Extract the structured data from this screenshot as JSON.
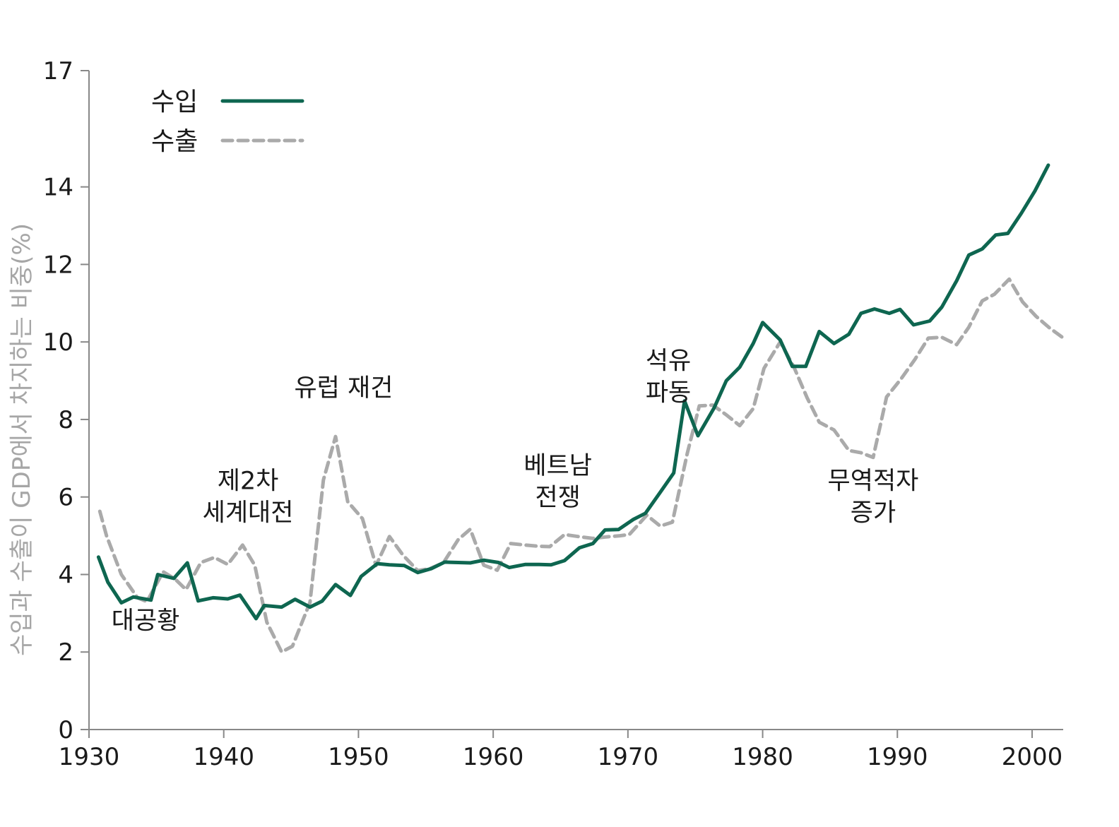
{
  "chart_data": {
    "type": "line",
    "title": "",
    "xlabel": "",
    "ylabel": "수입과 수출이 GDP에서 차지하는 비중(%)",
    "xlim": [
      1930,
      2002
    ],
    "ylim": [
      0,
      17
    ],
    "x_ticks": [
      "1930",
      "1940",
      "1950",
      "1960",
      "1970",
      "1980",
      "1990",
      "2000"
    ],
    "y_ticks": [
      "0",
      "2",
      "4",
      "6",
      "8",
      "10",
      "12",
      "14",
      "17"
    ],
    "grid": false,
    "legend_position": "top-left",
    "colors": {
      "imports": "#0e6650",
      "exports": "#aaaaaa",
      "axis": "#888888"
    },
    "series": [
      {
        "name": "수입",
        "style": "solid",
        "x": [
          1930.7,
          1931.4,
          1932.4,
          1933.3,
          1934.6,
          1935.1,
          1936.3,
          1937.3,
          1938.1,
          1939.2,
          1940.3,
          1941.2,
          1942.4,
          1943.0,
          1944.3,
          1945.3,
          1946.4,
          1947.3,
          1948.3,
          1949.4,
          1950.2,
          1951.4,
          1952.3,
          1953.4,
          1954.4,
          1955.4,
          1956.4,
          1957.4,
          1958.3,
          1959.3,
          1960.4,
          1961.2,
          1962.4,
          1963.4,
          1964.3,
          1965.3,
          1966.4,
          1967.4,
          1968.3,
          1969.3,
          1970.4,
          1971.3,
          1972.4,
          1973.4,
          1974.2,
          1975.2,
          1976.4,
          1977.3,
          1978.3,
          1979.3,
          1980.0,
          1981.3,
          1982.2,
          1983.2,
          1984.2,
          1985.3,
          1986.4,
          1987.3,
          1988.3,
          1989.4,
          1990.2,
          1991.2,
          1992.4,
          1993.3,
          1994.4,
          1995.3,
          1996.3,
          1997.3,
          1998.2,
          1999.2,
          2000.2,
          2001.2
        ],
        "y": [
          4.45,
          3.8,
          3.27,
          3.42,
          3.34,
          4.0,
          3.9,
          4.3,
          3.32,
          3.4,
          3.37,
          3.47,
          2.86,
          3.2,
          3.16,
          3.36,
          3.16,
          3.31,
          3.74,
          3.46,
          3.95,
          4.28,
          4.25,
          4.23,
          4.05,
          4.15,
          4.32,
          4.31,
          4.3,
          4.37,
          4.31,
          4.18,
          4.26,
          4.26,
          4.25,
          4.36,
          4.69,
          4.8,
          5.15,
          5.16,
          5.42,
          5.58,
          6.12,
          6.62,
          8.48,
          7.58,
          8.3,
          9.0,
          9.35,
          9.96,
          10.5,
          10.05,
          9.37,
          9.37,
          10.27,
          9.96,
          10.2,
          10.74,
          10.85,
          10.74,
          10.84,
          10.44,
          10.54,
          10.9,
          11.58,
          12.24,
          12.4,
          12.76,
          12.8,
          13.32,
          13.89,
          14.56
        ]
      },
      {
        "name": "수출",
        "style": "dashed",
        "x": [
          1930.8,
          1931.3,
          1932.4,
          1933.6,
          1934.3,
          1935.5,
          1936.4,
          1937.2,
          1938.3,
          1939.3,
          1940.3,
          1941.4,
          1942.3,
          1943.2,
          1944.3,
          1945.1,
          1946.4,
          1947.4,
          1948.3,
          1949.2,
          1950.3,
          1951.3,
          1952.3,
          1953.3,
          1954.4,
          1955.3,
          1956.3,
          1957.4,
          1958.3,
          1959.3,
          1960.3,
          1961.3,
          1962.4,
          1963.3,
          1964.2,
          1965.3,
          1966.3,
          1967.4,
          1968.4,
          1969.4,
          1970.1,
          1971.4,
          1972.4,
          1973.3,
          1974.4,
          1975.3,
          1976.3,
          1977.3,
          1978.3,
          1979.3,
          1980.1,
          1981.3,
          1982.3,
          1983.3,
          1984.2,
          1985.3,
          1986.4,
          1987.3,
          1988.2,
          1989.2,
          1990.3,
          1991.3,
          1992.3,
          1993.3,
          1994.4,
          1995.3,
          1996.3,
          1997.2,
          1998.3,
          1999.3,
          2000.3,
          2001.3,
          2002.2
        ],
        "y": [
          5.63,
          5.0,
          4.0,
          3.4,
          3.3,
          4.07,
          3.88,
          3.61,
          4.31,
          4.44,
          4.26,
          4.76,
          4.24,
          2.77,
          2.0,
          2.15,
          3.28,
          6.44,
          7.56,
          5.88,
          5.44,
          4.23,
          4.98,
          4.5,
          4.1,
          4.15,
          4.3,
          4.9,
          5.17,
          4.24,
          4.11,
          4.8,
          4.76,
          4.73,
          4.72,
          5.03,
          4.98,
          4.93,
          4.97,
          5.0,
          5.03,
          5.53,
          5.25,
          5.35,
          7.12,
          8.35,
          8.37,
          8.12,
          7.84,
          8.28,
          9.32,
          10.0,
          9.37,
          8.56,
          7.93,
          7.73,
          7.2,
          7.14,
          7.02,
          8.58,
          9.06,
          9.55,
          10.1,
          10.12,
          9.93,
          10.38,
          11.06,
          11.23,
          11.62,
          11.03,
          10.66,
          10.36,
          10.13
        ]
      }
    ],
    "annotations": [
      {
        "lines": [
          "대공황"
        ],
        "x": 1934.2,
        "y": 2.6
      },
      {
        "lines": [
          "제2차",
          "세계대전"
        ],
        "x": 1941.8,
        "y": 6.2
      },
      {
        "lines": [
          "유럽 재건"
        ],
        "x": 1948.9,
        "y": 8.6
      },
      {
        "lines": [
          "베트남",
          "전쟁"
        ],
        "x": 1964.8,
        "y": 6.6
      },
      {
        "lines": [
          "석유",
          "파동"
        ],
        "x": 1973.0,
        "y": 9.3
      },
      {
        "lines": [
          "무역적자",
          "증가"
        ],
        "x": 1988.2,
        "y": 6.2
      }
    ]
  }
}
